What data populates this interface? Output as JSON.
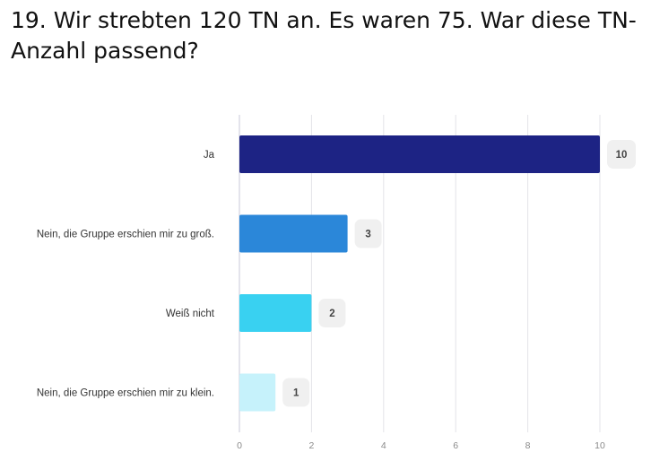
{
  "question": {
    "title": "19. Wir strebten 120 TN an. Es waren 75. War diese TN-Anzahl passend?"
  },
  "colors": {
    "grid": "#e3e3e8",
    "axis": "#c9c9d9",
    "value_badge": "#f0f0f0",
    "bars": [
      "#1d2384",
      "#2b87d9",
      "#39d1f1",
      "#c6f2fb"
    ]
  },
  "chart_data": {
    "type": "bar",
    "orientation": "horizontal",
    "categories": [
      "Ja",
      "Nein, die Gruppe erschien mir zu groß.",
      "Weiß nicht",
      "Nein, die Gruppe erschien mir zu klein."
    ],
    "values": [
      10,
      3,
      2,
      1
    ],
    "value_labels": [
      "10",
      "3",
      "2",
      "1"
    ],
    "title": "19. Wir strebten 120 TN an. Es waren 75. War diese TN-Anzahl passend?",
    "xlabel": "",
    "ylabel": "",
    "xlim": [
      0,
      10
    ],
    "ticks": [
      0,
      2,
      4,
      6,
      8,
      10
    ],
    "tick_labels": [
      "0",
      "2",
      "4",
      "6",
      "8",
      "10"
    ],
    "grid": true,
    "legend": "none"
  }
}
